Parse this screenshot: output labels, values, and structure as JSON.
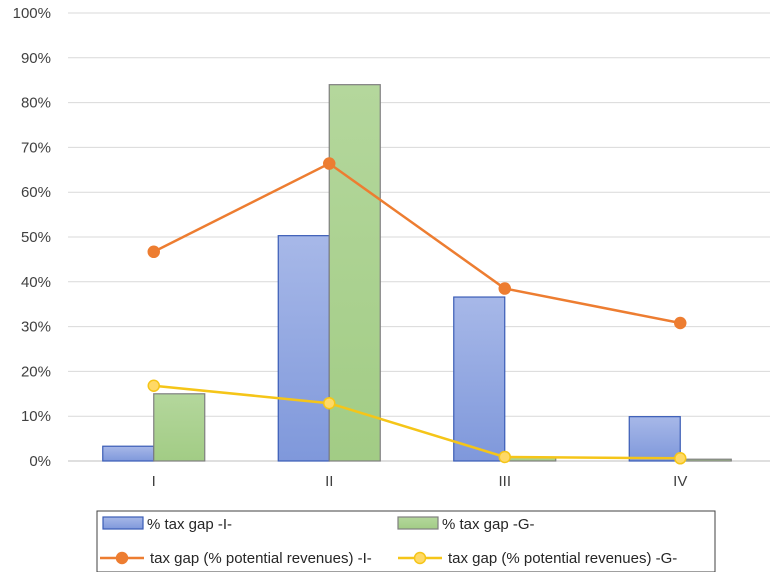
{
  "chart_data": {
    "type": "bar",
    "categories": [
      "I",
      "II",
      "III",
      "IV"
    ],
    "ylim": [
      0,
      100
    ],
    "y_ticks": [
      "0%",
      "10%",
      "20%",
      "30%",
      "40%",
      "50%",
      "60%",
      "70%",
      "80%",
      "90%",
      "100%"
    ],
    "grid": true,
    "legend_position": "bottom",
    "bar_series": [
      {
        "name": "% tax gap -I-",
        "values": [
          3.3,
          50.3,
          36.6,
          9.9
        ],
        "color": "#8fa6e0",
        "stroke": "#3a5cb6"
      },
      {
        "name": "% tax gap -G-",
        "values": [
          15.0,
          84.0,
          0.8,
          0.4
        ],
        "color": "#a9d18e",
        "stroke": "#7f7f7f"
      }
    ],
    "line_series": [
      {
        "name": "tax gap (% potential revenues) -I-",
        "values": [
          46.7,
          66.4,
          38.5,
          30.8
        ],
        "color": "#ed7d31"
      },
      {
        "name": "tax gap (% potential revenues) -G-",
        "values": [
          16.8,
          12.9,
          0.9,
          0.6
        ],
        "color": "#f5c518",
        "marker_fill": "#ffd966"
      }
    ]
  }
}
